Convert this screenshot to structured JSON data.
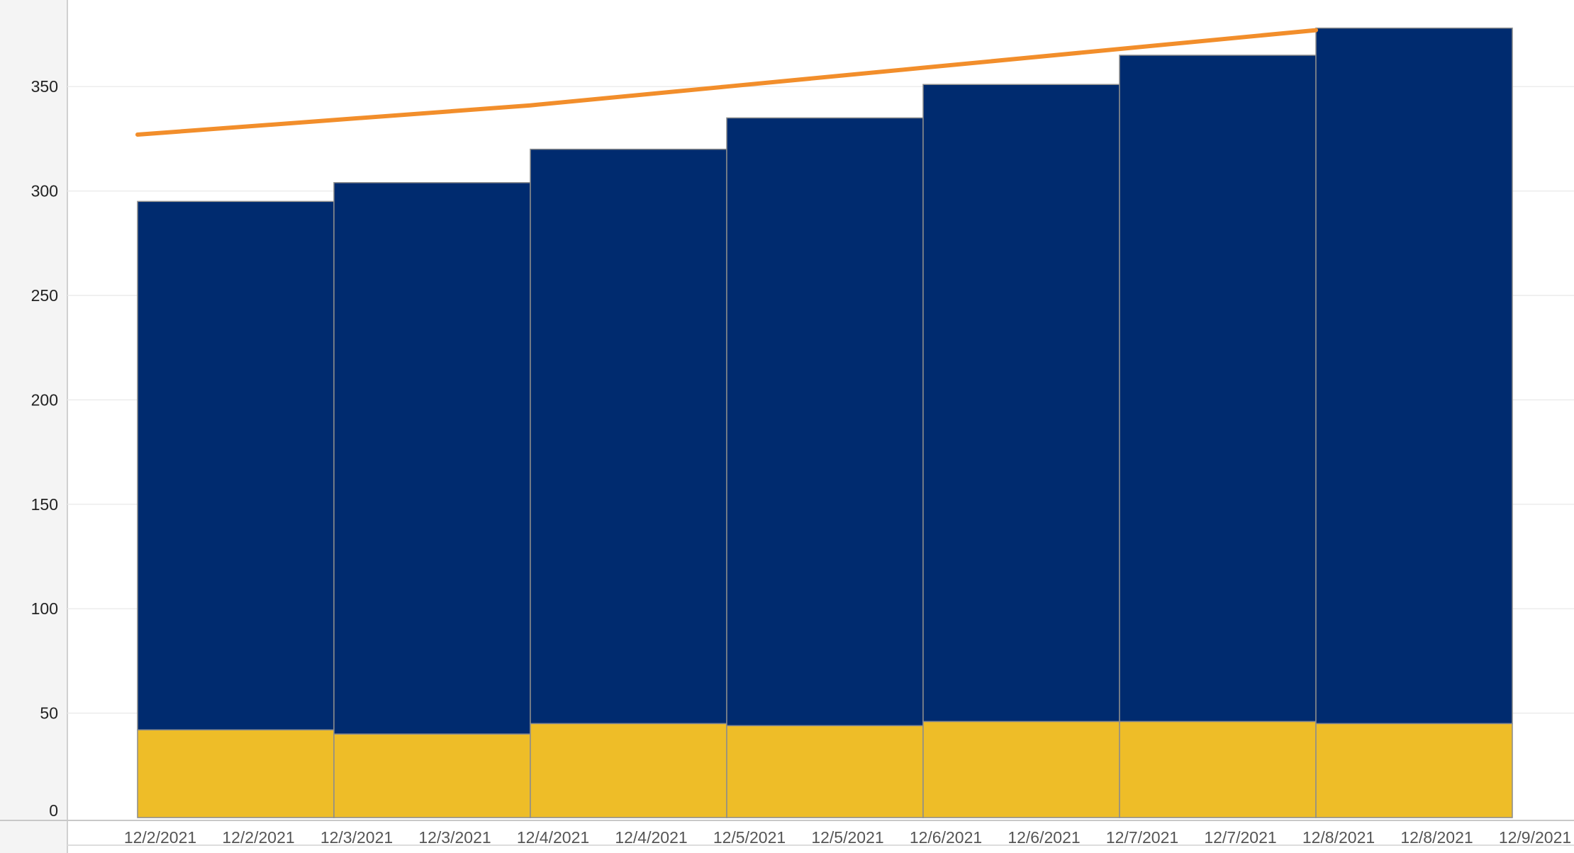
{
  "colors": {
    "background": "#ffffff",
    "y_axis_panel": "#f4f4f4",
    "gridline": "#ececec",
    "axis_line": "#c8c8c8",
    "bar_border": "#8c8c8c",
    "series_bottom": "#eebd28",
    "series_top": "#002b6f",
    "trend_line": "#f28e2b"
  },
  "chart_data": {
    "type": "bar",
    "stacked": true,
    "title": "",
    "xlabel": "",
    "ylabel": "",
    "x_tick_labels": [
      "12/2/2021",
      "12/2/2021",
      "12/3/2021",
      "12/3/2021",
      "12/4/2021",
      "12/4/2021",
      "12/5/2021",
      "12/5/2021",
      "12/6/2021",
      "12/6/2021",
      "12/7/2021",
      "12/7/2021",
      "12/8/2021",
      "12/8/2021",
      "12/9/2021"
    ],
    "bar_start_dates": [
      "12/2/2021",
      "12/3/2021",
      "12/4/2021",
      "12/5/2021",
      "12/6/2021",
      "12/7/2021",
      "12/8/2021"
    ],
    "bar_end_dates": [
      "12/3/2021",
      "12/4/2021",
      "12/5/2021",
      "12/6/2021",
      "12/7/2021",
      "12/8/2021",
      "12/9/2021"
    ],
    "series": [
      {
        "values": [
          42,
          40,
          45,
          44,
          46,
          46,
          45
        ],
        "color": "#eebd28"
      },
      {
        "values": [
          253,
          264,
          275,
          291,
          305,
          319,
          333
        ],
        "color": "#002b6f"
      }
    ],
    "bar_totals": [
      295,
      304,
      320,
      335,
      351,
      365,
      378
    ],
    "trend_line": {
      "dates": [
        "12/2/2021",
        "12/3/2021",
        "12/4/2021",
        "12/5/2021",
        "12/6/2021",
        "12/7/2021",
        "12/8/2021"
      ],
      "values": [
        327,
        334,
        341,
        350,
        359,
        368,
        377
      ],
      "color": "#f28e2b"
    },
    "y_ticks": [
      0,
      50,
      100,
      150,
      200,
      250,
      300,
      350
    ],
    "ylim": [
      0,
      390
    ],
    "grid": true,
    "legend": false
  }
}
